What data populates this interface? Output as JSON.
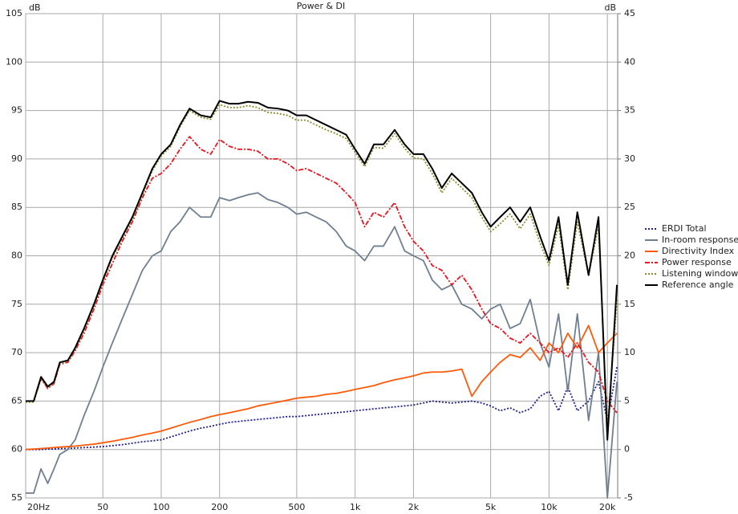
{
  "chart_data": {
    "type": "line",
    "title": "Power & DI",
    "y_label": "dB",
    "y2_label": "dB",
    "xscale": "log",
    "grid": true,
    "legend": "right",
    "xlim": [
      20,
      22600
    ],
    "ylim": [
      55,
      105
    ],
    "y2lim": [
      -5,
      45
    ],
    "xticks": [
      {
        "value": 20,
        "label": "20Hz"
      },
      50,
      100,
      200,
      500,
      {
        "value": 1000,
        "label": "1k"
      },
      {
        "value": 2000,
        "label": "2k"
      },
      {
        "value": 5000,
        "label": "5k"
      },
      {
        "value": 10000,
        "label": "10k"
      },
      {
        "value": 20000,
        "label": "20k"
      }
    ],
    "yticks": [
      55,
      60,
      65,
      70,
      75,
      80,
      85,
      90,
      95,
      100,
      105
    ],
    "y2ticks": [
      -5,
      0,
      5,
      10,
      15,
      20,
      25,
      30,
      35,
      40,
      45
    ],
    "x": [
      20,
      22,
      24,
      26,
      28,
      30,
      33,
      36,
      40,
      45,
      50,
      56,
      63,
      71,
      80,
      90,
      100,
      112,
      125,
      140,
      160,
      180,
      200,
      225,
      250,
      280,
      315,
      355,
      400,
      450,
      500,
      560,
      630,
      710,
      800,
      900,
      1000,
      1120,
      1250,
      1400,
      1600,
      1800,
      2000,
      2250,
      2500,
      2800,
      3150,
      3550,
      4000,
      4500,
      5000,
      5600,
      6300,
      7100,
      8000,
      9000,
      10000,
      11200,
      12500,
      14000,
      16000,
      18000,
      20000,
      22400
    ],
    "series": [
      {
        "name": "ERDI Total",
        "color": "#1f1f8f",
        "dash": "dotted",
        "axis": "y2",
        "values": [
          0,
          0,
          0,
          0.05,
          0.05,
          0.1,
          0.1,
          0.15,
          0.2,
          0.25,
          0.3,
          0.4,
          0.5,
          0.65,
          0.8,
          0.9,
          1,
          1.3,
          1.6,
          1.9,
          2.2,
          2.4,
          2.6,
          2.8,
          2.9,
          3,
          3.1,
          3.2,
          3.3,
          3.4,
          3.4,
          3.5,
          3.6,
          3.7,
          3.8,
          3.9,
          4,
          4.1,
          4.2,
          4.3,
          4.4,
          4.5,
          4.6,
          4.8,
          5,
          4.9,
          4.8,
          4.9,
          5,
          4.8,
          4.5,
          4,
          4.3,
          3.8,
          4.2,
          5.5,
          6,
          4,
          6.5,
          4,
          5,
          7,
          3,
          8.5
        ]
      },
      {
        "name": "In-room response",
        "color": "#6f7f92",
        "dash": "solid",
        "values": [
          55.5,
          55.5,
          58,
          56.5,
          58,
          59.5,
          60,
          61,
          63.5,
          66,
          68.5,
          71,
          73.5,
          76,
          78.5,
          80,
          80.5,
          82.5,
          83.5,
          85,
          84,
          84,
          86,
          85.7,
          86,
          86.3,
          86.5,
          85.8,
          85.5,
          85,
          84.3,
          84.5,
          84,
          83.5,
          82.5,
          81,
          80.5,
          79.5,
          81,
          81,
          83,
          80.5,
          80,
          79.5,
          77.5,
          76.5,
          77,
          75,
          74.5,
          73.5,
          74.5,
          75,
          72.5,
          73,
          75.5,
          71,
          68.5,
          74,
          66,
          74,
          63,
          70,
          55,
          67
        ]
      },
      {
        "name": "Directivity Index",
        "color": "#ff5a0a",
        "dash": "solid",
        "axis": "y2",
        "values": [
          0,
          0.05,
          0.1,
          0.15,
          0.2,
          0.25,
          0.3,
          0.35,
          0.45,
          0.55,
          0.7,
          0.85,
          1.05,
          1.25,
          1.5,
          1.7,
          1.9,
          2.2,
          2.5,
          2.8,
          3.1,
          3.4,
          3.6,
          3.8,
          4,
          4.2,
          4.5,
          4.7,
          4.9,
          5.1,
          5.3,
          5.4,
          5.5,
          5.7,
          5.8,
          6,
          6.2,
          6.4,
          6.6,
          6.9,
          7.2,
          7.4,
          7.6,
          7.9,
          8,
          8,
          8.1,
          8.3,
          5.5,
          7,
          8,
          9,
          9.8,
          9.5,
          10.5,
          9.2,
          11,
          10,
          12,
          10.5,
          12.8,
          10,
          11,
          12
        ]
      },
      {
        "name": "Power response",
        "color": "#e8141e",
        "dash": "dashdot",
        "values": [
          65,
          65,
          67.3,
          66.3,
          66.8,
          68.8,
          69,
          70.2,
          72,
          74.5,
          77,
          79.2,
          81.5,
          83.5,
          86,
          88,
          88.5,
          89.5,
          91,
          92.3,
          91,
          90.5,
          92,
          91.3,
          91,
          91,
          90.8,
          90,
          90,
          89.5,
          88.8,
          89,
          88.5,
          88,
          87.5,
          86.5,
          85.5,
          83,
          84.5,
          84,
          85.5,
          83,
          81.5,
          80.5,
          79,
          78.5,
          77,
          78,
          76.5,
          74.5,
          73,
          72.5,
          71.5,
          71,
          72,
          71,
          70,
          70.5,
          69.5,
          71,
          69,
          68,
          65,
          63.8
        ]
      },
      {
        "name": "Listening window",
        "color": "#8c8c2a",
        "dash": "dotted",
        "values": [
          64.9,
          64.9,
          67.3,
          66.4,
          66.9,
          68.9,
          69.1,
          70.4,
          72.3,
          74.8,
          77.3,
          79.8,
          81.8,
          83.8,
          86.3,
          88.8,
          90.3,
          91.3,
          93.3,
          95,
          94.3,
          94.1,
          95.6,
          95.3,
          95.3,
          95.5,
          95.3,
          94.8,
          94.7,
          94.5,
          94,
          94,
          93.5,
          93,
          92.6,
          92.1,
          90.7,
          89.2,
          91.2,
          91.1,
          92.6,
          91.1,
          90.1,
          90,
          88.5,
          86.5,
          88,
          87,
          86,
          84,
          82.5,
          83.3,
          84.3,
          82.8,
          84.3,
          81.3,
          79,
          83.2,
          76.5,
          83.5,
          78,
          83,
          62,
          75.5
        ]
      },
      {
        "name": "Reference angle",
        "color": "#000000",
        "dash": "solid",
        "values": [
          65,
          65,
          67.5,
          66.5,
          67,
          69,
          69.2,
          70.5,
          72.5,
          75,
          77.5,
          80,
          82,
          84,
          86.5,
          89,
          90.5,
          91.5,
          93.5,
          95.2,
          94.5,
          94.3,
          96,
          95.7,
          95.7,
          95.9,
          95.8,
          95.3,
          95.2,
          95,
          94.5,
          94.5,
          94,
          93.5,
          93,
          92.5,
          91,
          89.5,
          91.5,
          91.5,
          93,
          91.5,
          90.5,
          90.5,
          89,
          87,
          88.5,
          87.5,
          86.5,
          84.5,
          83,
          84,
          85,
          83.5,
          85,
          82,
          79.5,
          84,
          77,
          84.5,
          78,
          84,
          61,
          77
        ]
      }
    ]
  }
}
